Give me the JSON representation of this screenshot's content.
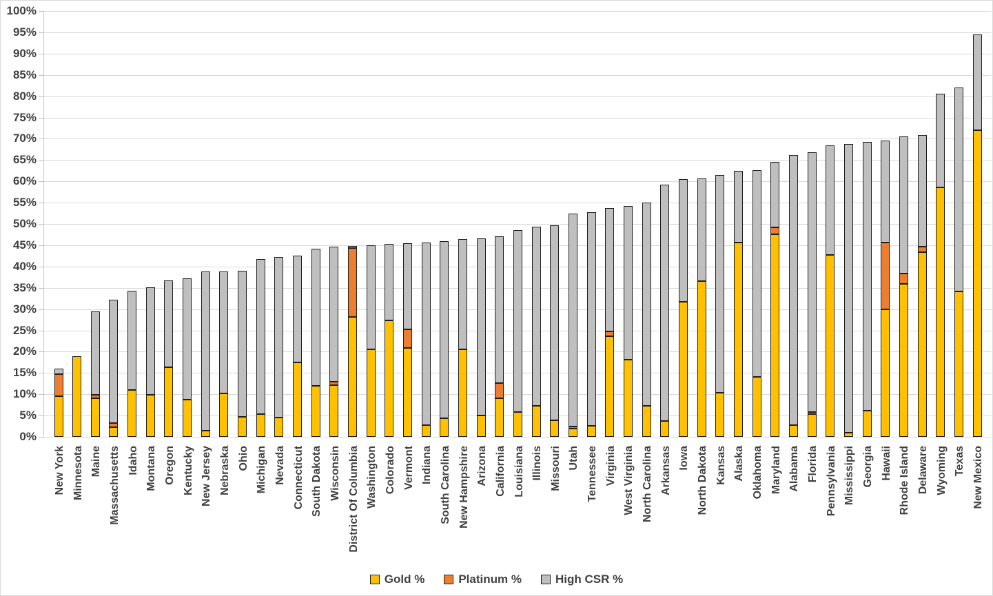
{
  "chart_data": {
    "type": "bar",
    "stacked": true,
    "title": "",
    "xlabel": "",
    "ylabel": "",
    "grid": true,
    "categories": [
      "New York",
      "Minnesota",
      "Maine",
      "Massachusetts",
      "Idaho",
      "Montana",
      "Oregon",
      "Kentucky",
      "New Jersey",
      "Nebraska",
      "Ohio",
      "Michigan",
      "Nevada",
      "Connecticut",
      "South Dakota",
      "Wisconsin",
      "District Of Columbia",
      "Washington",
      "Colorado",
      "Vermont",
      "Indiana",
      "South Carolina",
      "New Hampshire",
      "Arizona",
      "California",
      "Louisiana",
      "Illinois",
      "Missouri",
      "Utah",
      "Tennessee",
      "Virginia",
      "West Virginia",
      "North Carolina",
      "Arkansas",
      "Iowa",
      "North Dakota",
      "Kansas",
      "Alaska",
      "Oklahoma",
      "Maryland",
      "Alabama",
      "Florida",
      "Pennsylvania",
      "Mississippi",
      "Georgia",
      "Hawaii",
      "Rhode Island",
      "Delaware",
      "Wyoming",
      "Texas",
      "New Mexico"
    ],
    "series": [
      {
        "name": "Gold %",
        "color": "#FFC000",
        "values": [
          9.5,
          19.0,
          9.0,
          2.3,
          11.0,
          9.8,
          16.4,
          8.8,
          1.5,
          10.2,
          4.7,
          5.3,
          4.5,
          17.4,
          12.0,
          12.2,
          28.2,
          20.6,
          27.4,
          20.9,
          2.8,
          4.3,
          20.5,
          5.0,
          9.0,
          5.8,
          7.3,
          3.9,
          1.9,
          2.6,
          23.7,
          18.2,
          7.3,
          3.8,
          31.7,
          36.6,
          10.4,
          45.7,
          14.0,
          47.6,
          2.8,
          5.3,
          42.7,
          1.0,
          6.2,
          29.9,
          36.0,
          43.3,
          58.6,
          34.2,
          72.0
        ]
      },
      {
        "name": "Platinum %",
        "color": "#ED7D31",
        "values": [
          5.3,
          0,
          0.9,
          1.0,
          0,
          0,
          0,
          0,
          0,
          0,
          0,
          0,
          0,
          0,
          0,
          0.7,
          16.2,
          0,
          0,
          4.4,
          0,
          0,
          0,
          0,
          3.7,
          0,
          0,
          0,
          0.5,
          0,
          1.1,
          0,
          0,
          0,
          0,
          0,
          0,
          0,
          0,
          1.6,
          0,
          0.5,
          0,
          0,
          0,
          15.8,
          2.4,
          1.3,
          0,
          0,
          0
        ]
      },
      {
        "name": "High CSR %",
        "color": "#BFBFBF",
        "values": [
          1.3,
          0,
          19.6,
          28.9,
          23.3,
          25.3,
          20.4,
          28.4,
          37.3,
          28.7,
          34.3,
          36.4,
          37.8,
          25.1,
          32.1,
          31.7,
          0.5,
          24.4,
          17.9,
          20.2,
          42.9,
          41.7,
          25.9,
          41.6,
          34.4,
          42.7,
          42.0,
          45.8,
          50.0,
          50.2,
          29.0,
          36.0,
          47.7,
          55.5,
          28.8,
          24.1,
          51.1,
          16.8,
          48.7,
          15.3,
          63.4,
          61.0,
          25.7,
          67.8,
          63.0,
          23.9,
          32.1,
          26.3,
          22.0,
          47.8,
          22.5
        ]
      }
    ],
    "y_axis": {
      "min": 0,
      "max": 100,
      "step": 5,
      "format": "percent",
      "tick_labels": [
        "0%",
        "5%",
        "10%",
        "15%",
        "20%",
        "25%",
        "30%",
        "35%",
        "40%",
        "45%",
        "50%",
        "55%",
        "60%",
        "65%",
        "70%",
        "75%",
        "80%",
        "85%",
        "90%",
        "95%",
        "100%"
      ]
    },
    "legend": {
      "position": "bottom",
      "entries": [
        "Gold %",
        "Platinum %",
        "High CSR %"
      ]
    },
    "style": {
      "background": "#FFFFFF",
      "gridline_color": "#D9D9D9",
      "axis_label_color": "#404040",
      "bar_border_color": "#1F1F1F"
    }
  }
}
